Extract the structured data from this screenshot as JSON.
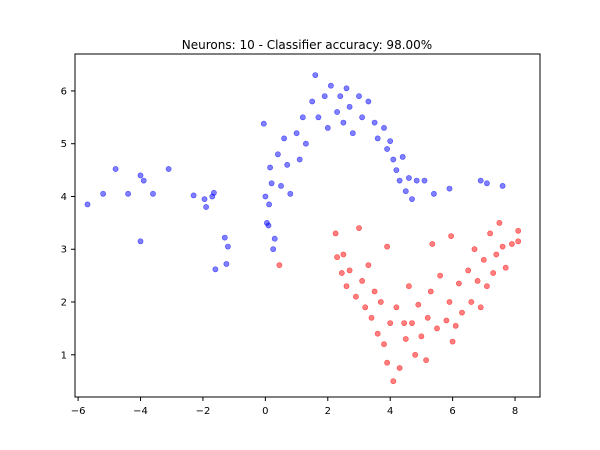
{
  "chart_data": {
    "type": "scatter",
    "title": "Neurons: 10 - Classifier accuracy: 98.00%",
    "xlabel": "",
    "ylabel": "",
    "xlim": [
      -6.1,
      8.8
    ],
    "ylim": [
      0.2,
      6.7
    ],
    "x_ticks": [
      -6,
      -4,
      -2,
      0,
      2,
      4,
      6,
      8
    ],
    "y_ticks": [
      1,
      2,
      3,
      4,
      5,
      6
    ],
    "grid": false,
    "legend": "none",
    "series": [
      {
        "color": "#0000ff",
        "points": [
          [
            -5.7,
            3.85
          ],
          [
            -5.2,
            4.05
          ],
          [
            -4.8,
            4.52
          ],
          [
            -4.4,
            4.05
          ],
          [
            -4.0,
            4.4
          ],
          [
            -3.9,
            4.3
          ],
          [
            -3.6,
            4.05
          ],
          [
            -3.1,
            4.52
          ],
          [
            -2.3,
            4.02
          ],
          [
            -1.95,
            3.95
          ],
          [
            -1.9,
            3.8
          ],
          [
            -1.7,
            4.0
          ],
          [
            -1.65,
            4.07
          ],
          [
            -1.6,
            2.62
          ],
          [
            -1.3,
            3.22
          ],
          [
            -1.2,
            3.05
          ],
          [
            -1.25,
            2.72
          ],
          [
            -4.0,
            3.15
          ],
          [
            -0.05,
            5.38
          ],
          [
            0.0,
            4.0
          ],
          [
            0.05,
            3.5
          ],
          [
            0.1,
            3.45
          ],
          [
            0.12,
            3.85
          ],
          [
            0.15,
            4.55
          ],
          [
            0.25,
            3.0
          ],
          [
            0.3,
            3.2
          ],
          [
            0.2,
            4.25
          ],
          [
            0.4,
            4.8
          ],
          [
            0.5,
            4.2
          ],
          [
            0.6,
            5.1
          ],
          [
            0.7,
            4.6
          ],
          [
            0.8,
            4.05
          ],
          [
            1.0,
            5.2
          ],
          [
            1.1,
            4.7
          ],
          [
            1.2,
            5.5
          ],
          [
            1.3,
            5.0
          ],
          [
            1.5,
            5.8
          ],
          [
            1.6,
            6.3
          ],
          [
            1.7,
            5.5
          ],
          [
            1.9,
            5.9
          ],
          [
            2.0,
            5.3
          ],
          [
            2.1,
            6.1
          ],
          [
            2.3,
            5.6
          ],
          [
            2.4,
            5.9
          ],
          [
            2.5,
            5.4
          ],
          [
            2.6,
            6.05
          ],
          [
            2.7,
            5.7
          ],
          [
            2.8,
            5.2
          ],
          [
            3.0,
            5.9
          ],
          [
            3.1,
            5.5
          ],
          [
            3.3,
            5.8
          ],
          [
            3.5,
            5.4
          ],
          [
            3.6,
            5.1
          ],
          [
            3.8,
            5.3
          ],
          [
            3.9,
            4.9
          ],
          [
            4.0,
            5.05
          ],
          [
            4.1,
            4.7
          ],
          [
            4.2,
            4.5
          ],
          [
            4.3,
            4.3
          ],
          [
            4.4,
            4.75
          ],
          [
            4.5,
            4.1
          ],
          [
            4.6,
            4.35
          ],
          [
            4.7,
            3.95
          ],
          [
            4.85,
            4.3
          ],
          [
            5.1,
            4.3
          ],
          [
            5.4,
            4.05
          ],
          [
            5.9,
            4.15
          ],
          [
            6.9,
            4.3
          ],
          [
            7.1,
            4.25
          ],
          [
            7.6,
            4.2
          ]
        ]
      },
      {
        "color": "#ff0000",
        "points": [
          [
            0.45,
            2.7
          ],
          [
            2.25,
            3.3
          ],
          [
            2.3,
            2.85
          ],
          [
            2.45,
            2.55
          ],
          [
            2.5,
            2.9
          ],
          [
            2.6,
            2.3
          ],
          [
            2.7,
            2.6
          ],
          [
            2.9,
            2.1
          ],
          [
            3.0,
            3.4
          ],
          [
            3.1,
            2.4
          ],
          [
            3.2,
            1.9
          ],
          [
            3.3,
            2.7
          ],
          [
            3.4,
            1.7
          ],
          [
            3.5,
            2.2
          ],
          [
            3.6,
            1.4
          ],
          [
            3.7,
            2.0
          ],
          [
            3.8,
            1.2
          ],
          [
            3.9,
            0.85
          ],
          [
            4.0,
            1.6
          ],
          [
            4.1,
            0.5
          ],
          [
            4.2,
            1.9
          ],
          [
            4.3,
            0.75
          ],
          [
            4.5,
            1.3
          ],
          [
            4.6,
            2.3
          ],
          [
            4.7,
            1.6
          ],
          [
            4.8,
            1.0
          ],
          [
            4.9,
            1.95
          ],
          [
            5.0,
            1.35
          ],
          [
            5.2,
            1.7
          ],
          [
            5.3,
            2.2
          ],
          [
            5.5,
            1.5
          ],
          [
            5.6,
            2.5
          ],
          [
            5.8,
            1.65
          ],
          [
            5.9,
            2.0
          ],
          [
            6.0,
            1.25
          ],
          [
            6.2,
            2.35
          ],
          [
            6.3,
            1.8
          ],
          [
            6.5,
            2.6
          ],
          [
            6.6,
            2.0
          ],
          [
            6.7,
            3.0
          ],
          [
            6.8,
            2.4
          ],
          [
            6.9,
            1.9
          ],
          [
            7.0,
            2.8
          ],
          [
            7.1,
            2.3
          ],
          [
            7.2,
            3.3
          ],
          [
            7.3,
            2.55
          ],
          [
            7.4,
            2.9
          ],
          [
            7.5,
            3.5
          ],
          [
            7.6,
            3.05
          ],
          [
            7.7,
            2.65
          ],
          [
            7.9,
            3.1
          ],
          [
            8.1,
            3.35
          ],
          [
            8.1,
            3.15
          ],
          [
            5.35,
            3.1
          ],
          [
            5.95,
            3.25
          ],
          [
            3.9,
            3.05
          ],
          [
            5.15,
            0.9
          ],
          [
            4.45,
            1.6
          ],
          [
            6.1,
            1.55
          ]
        ]
      }
    ]
  }
}
